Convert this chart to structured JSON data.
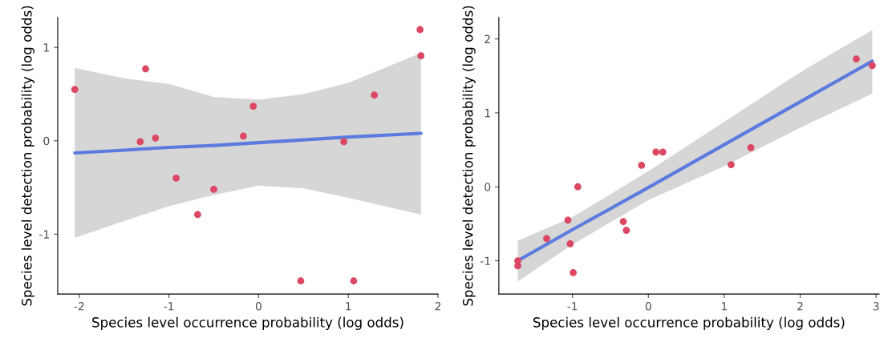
{
  "chart_data": [
    {
      "type": "scatter",
      "xlabel": "Species level occurrence probability (log odds)",
      "ylabel": "Species level detection probability (log odds)",
      "xlim": [
        -2.24,
        2.0
      ],
      "ylim": [
        -1.64,
        1.32
      ],
      "xticks": [
        -2,
        -1,
        0,
        1,
        2
      ],
      "yticks": [
        -1,
        0,
        1
      ],
      "grid": false,
      "legend": false,
      "series": [
        {
          "marker": "circle",
          "color": "#dc4863",
          "x": [
            -2.05,
            -1.26,
            -1.32,
            -1.15,
            -0.92,
            -0.68,
            -0.5,
            -0.17,
            -0.06,
            0.47,
            0.95,
            1.06,
            1.29,
            1.8,
            1.81
          ],
          "values": [
            0.55,
            0.77,
            -0.01,
            0.03,
            -0.4,
            -0.79,
            -0.52,
            0.05,
            0.37,
            -1.5,
            -0.01,
            -1.5,
            0.49,
            1.19,
            0.91
          ]
        },
        {
          "type": "line",
          "color": "#5b7bde",
          "line_style": "solid",
          "x": [
            -2.05,
            -1.5,
            -1,
            -0.5,
            0,
            0.5,
            1,
            1.81
          ],
          "values": [
            -0.13,
            -0.1,
            -0.07,
            -0.05,
            -0.02,
            0.01,
            0.04,
            0.08
          ],
          "lower": [
            -1.04,
            -0.86,
            -0.7,
            -0.58,
            -0.48,
            -0.51,
            -0.61,
            -0.79
          ],
          "upper": [
            0.78,
            0.67,
            0.61,
            0.47,
            0.44,
            0.5,
            0.62,
            0.94
          ]
        }
      ]
    },
    {
      "type": "scatter",
      "xlabel": "Species level occurrence probability (log odds)",
      "ylabel": "Species level detection probability (log odds)",
      "xlim": [
        -1.97,
        3.04
      ],
      "ylim": [
        -1.45,
        2.29
      ],
      "xticks": [
        -1,
        0,
        1,
        2,
        3
      ],
      "yticks": [
        -1,
        0,
        1,
        2
      ],
      "grid": false,
      "legend": false,
      "series": [
        {
          "marker": "circle",
          "color": "#dc4863",
          "x": [
            -1.72,
            -1.72,
            -1.34,
            -1.06,
            -1.03,
            -0.99,
            -0.93,
            -0.33,
            -0.29,
            -0.09,
            0.1,
            0.19,
            1.09,
            1.35,
            2.74,
            2.95
          ],
          "values": [
            -1.0,
            -1.07,
            -0.7,
            -0.45,
            -0.77,
            -1.16,
            0.0,
            -0.47,
            -0.59,
            0.29,
            0.47,
            0.47,
            0.3,
            0.53,
            1.73,
            1.64
          ]
        },
        {
          "type": "line",
          "color": "#5b7bde",
          "line_style": "solid",
          "x": [
            -1.72,
            -1,
            0,
            1,
            2,
            2.95
          ],
          "values": [
            -1.0,
            -0.58,
            -0.01,
            0.57,
            1.15,
            1.7
          ],
          "lower": [
            -1.28,
            -0.78,
            -0.18,
            0.28,
            0.8,
            1.26
          ],
          "upper": [
            -0.73,
            -0.41,
            0.21,
            0.88,
            1.55,
            2.12
          ]
        }
      ]
    }
  ]
}
